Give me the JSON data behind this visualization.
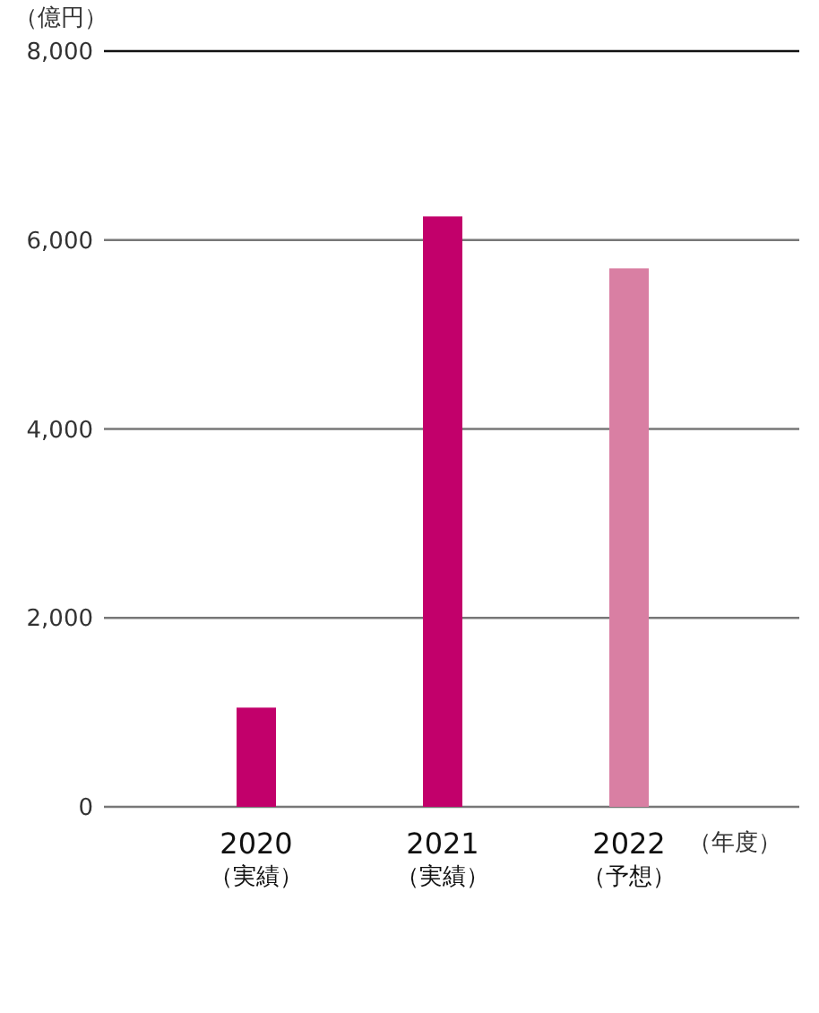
{
  "chart_data": {
    "type": "bar",
    "ylabel": "（億円）",
    "xlabel": "（年度）",
    "categories": [
      "2020\n（実績）",
      "2021\n（実績）",
      "2022\n（予想）"
    ],
    "values": [
      1050,
      6250,
      5700
    ],
    "colors": [
      "#c2006b",
      "#c2006b",
      "#d97fa3"
    ],
    "ylim": [
      0,
      8000
    ],
    "yticks": [
      {
        "value": 0,
        "label": "0"
      },
      {
        "value": 2000,
        "label": "2,000"
      },
      {
        "value": 4000,
        "label": "4,000"
      },
      {
        "value": 6000,
        "label": "6,000"
      },
      {
        "value": 8000,
        "label": "8,000"
      }
    ],
    "grid": "y"
  }
}
